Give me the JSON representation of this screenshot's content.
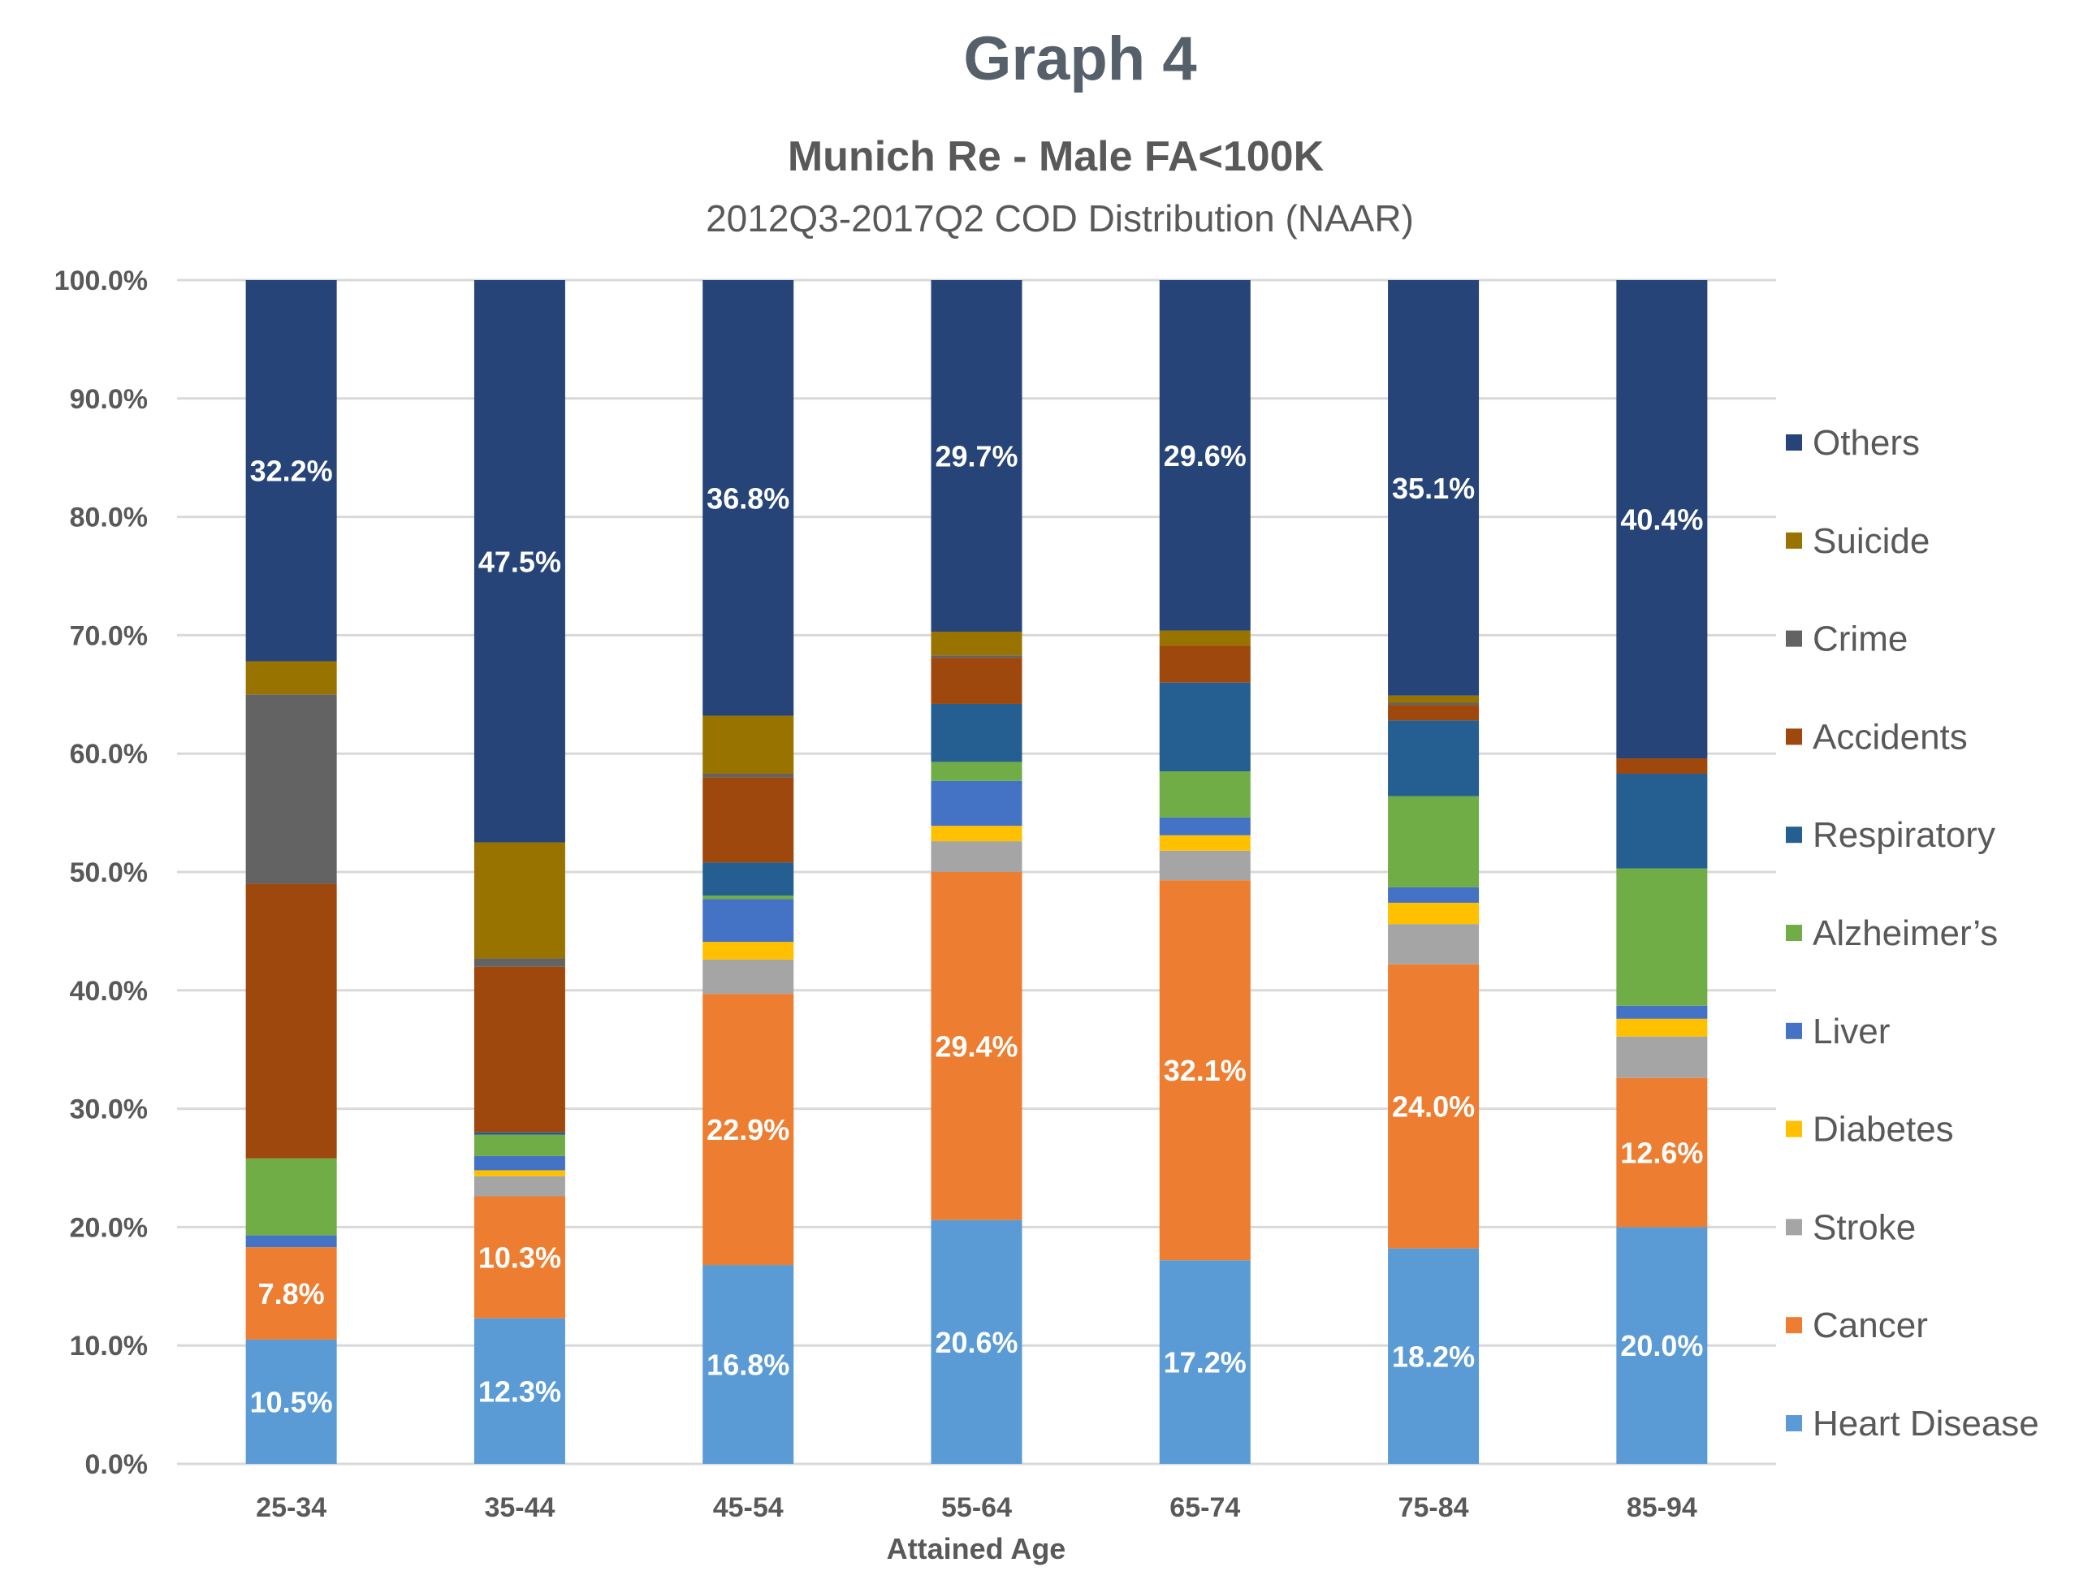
{
  "chart_data": {
    "type": "bar",
    "stacked": true,
    "title": "Graph 4",
    "subtitle": "Munich Re - Male FA<100K",
    "subsubtitle": "2012Q3-2017Q2 COD Distribution (NAAR)",
    "xlabel": "Attained Age",
    "ylabel": "",
    "ylim": [
      0,
      100
    ],
    "ytick_labels": [
      "0.0%",
      "10.0%",
      "20.0%",
      "30.0%",
      "40.0%",
      "50.0%",
      "60.0%",
      "70.0%",
      "80.0%",
      "90.0%",
      "100.0%"
    ],
    "grid": true,
    "legend_position": "right",
    "categories": [
      "25-34",
      "35-44",
      "45-54",
      "55-64",
      "65-74",
      "75-84",
      "85-94"
    ],
    "series": [
      {
        "name": "Heart Disease",
        "color": "#5b9bd5",
        "values": [
          10.5,
          12.3,
          16.8,
          20.6,
          17.2,
          18.2,
          20.0
        ],
        "labeled": true
      },
      {
        "name": "Cancer",
        "color": "#ed7d31",
        "values": [
          7.8,
          10.3,
          22.9,
          29.4,
          32.1,
          24.0,
          12.6
        ],
        "labeled": true
      },
      {
        "name": "Stroke",
        "color": "#a5a5a5",
        "values": [
          0.0,
          1.7,
          2.9,
          2.6,
          2.5,
          3.4,
          3.5
        ],
        "labeled": false
      },
      {
        "name": "Diabetes",
        "color": "#ffc000",
        "values": [
          0.0,
          0.5,
          1.5,
          1.3,
          1.3,
          1.8,
          1.5
        ],
        "labeled": false
      },
      {
        "name": "Liver",
        "color": "#4472c4",
        "values": [
          1.0,
          1.2,
          3.6,
          3.8,
          1.5,
          1.3,
          1.1
        ],
        "labeled": false
      },
      {
        "name": "Alzheimer’s",
        "color": "#70ad47",
        "values": [
          6.5,
          1.8,
          0.3,
          1.6,
          3.9,
          7.7,
          11.6
        ],
        "labeled": false
      },
      {
        "name": "Respiratory",
        "color": "#255e91",
        "values": [
          0.0,
          0.2,
          2.8,
          4.9,
          7.5,
          6.4,
          8.0
        ],
        "labeled": false
      },
      {
        "name": "Accidents",
        "color": "#9e480e",
        "values": [
          23.2,
          14.0,
          7.2,
          3.9,
          3.1,
          1.3,
          1.3
        ],
        "labeled": false
      },
      {
        "name": "Crime",
        "color": "#636363",
        "values": [
          16.0,
          0.7,
          0.3,
          0.2,
          0.0,
          0.2,
          0.0
        ],
        "labeled": false
      },
      {
        "name": "Suicide",
        "color": "#997300",
        "values": [
          2.8,
          9.8,
          4.9,
          2.0,
          1.3,
          0.6,
          0.0
        ],
        "labeled": false
      },
      {
        "name": "Others",
        "color": "#264478",
        "values": [
          32.2,
          47.5,
          36.8,
          29.7,
          29.6,
          35.1,
          40.4
        ],
        "labeled": true
      }
    ],
    "data_labels": {
      "Heart Disease": [
        "10.5%",
        "12.3%",
        "16.8%",
        "20.6%",
        "17.2%",
        "18.2%",
        "20.0%"
      ],
      "Cancer": [
        "7.8%",
        "10.3%",
        "22.9%",
        "29.4%",
        "32.1%",
        "24.0%",
        "12.6%"
      ],
      "Others": [
        "32.2%",
        "47.5%",
        "36.8%",
        "29.7%",
        "29.6%",
        "35.1%",
        "40.4%"
      ]
    },
    "legend_order": [
      "Others",
      "Suicide",
      "Crime",
      "Accidents",
      "Respiratory",
      "Alzheimer’s",
      "Liver",
      "Diabetes",
      "Stroke",
      "Cancer",
      "Heart Disease"
    ]
  }
}
